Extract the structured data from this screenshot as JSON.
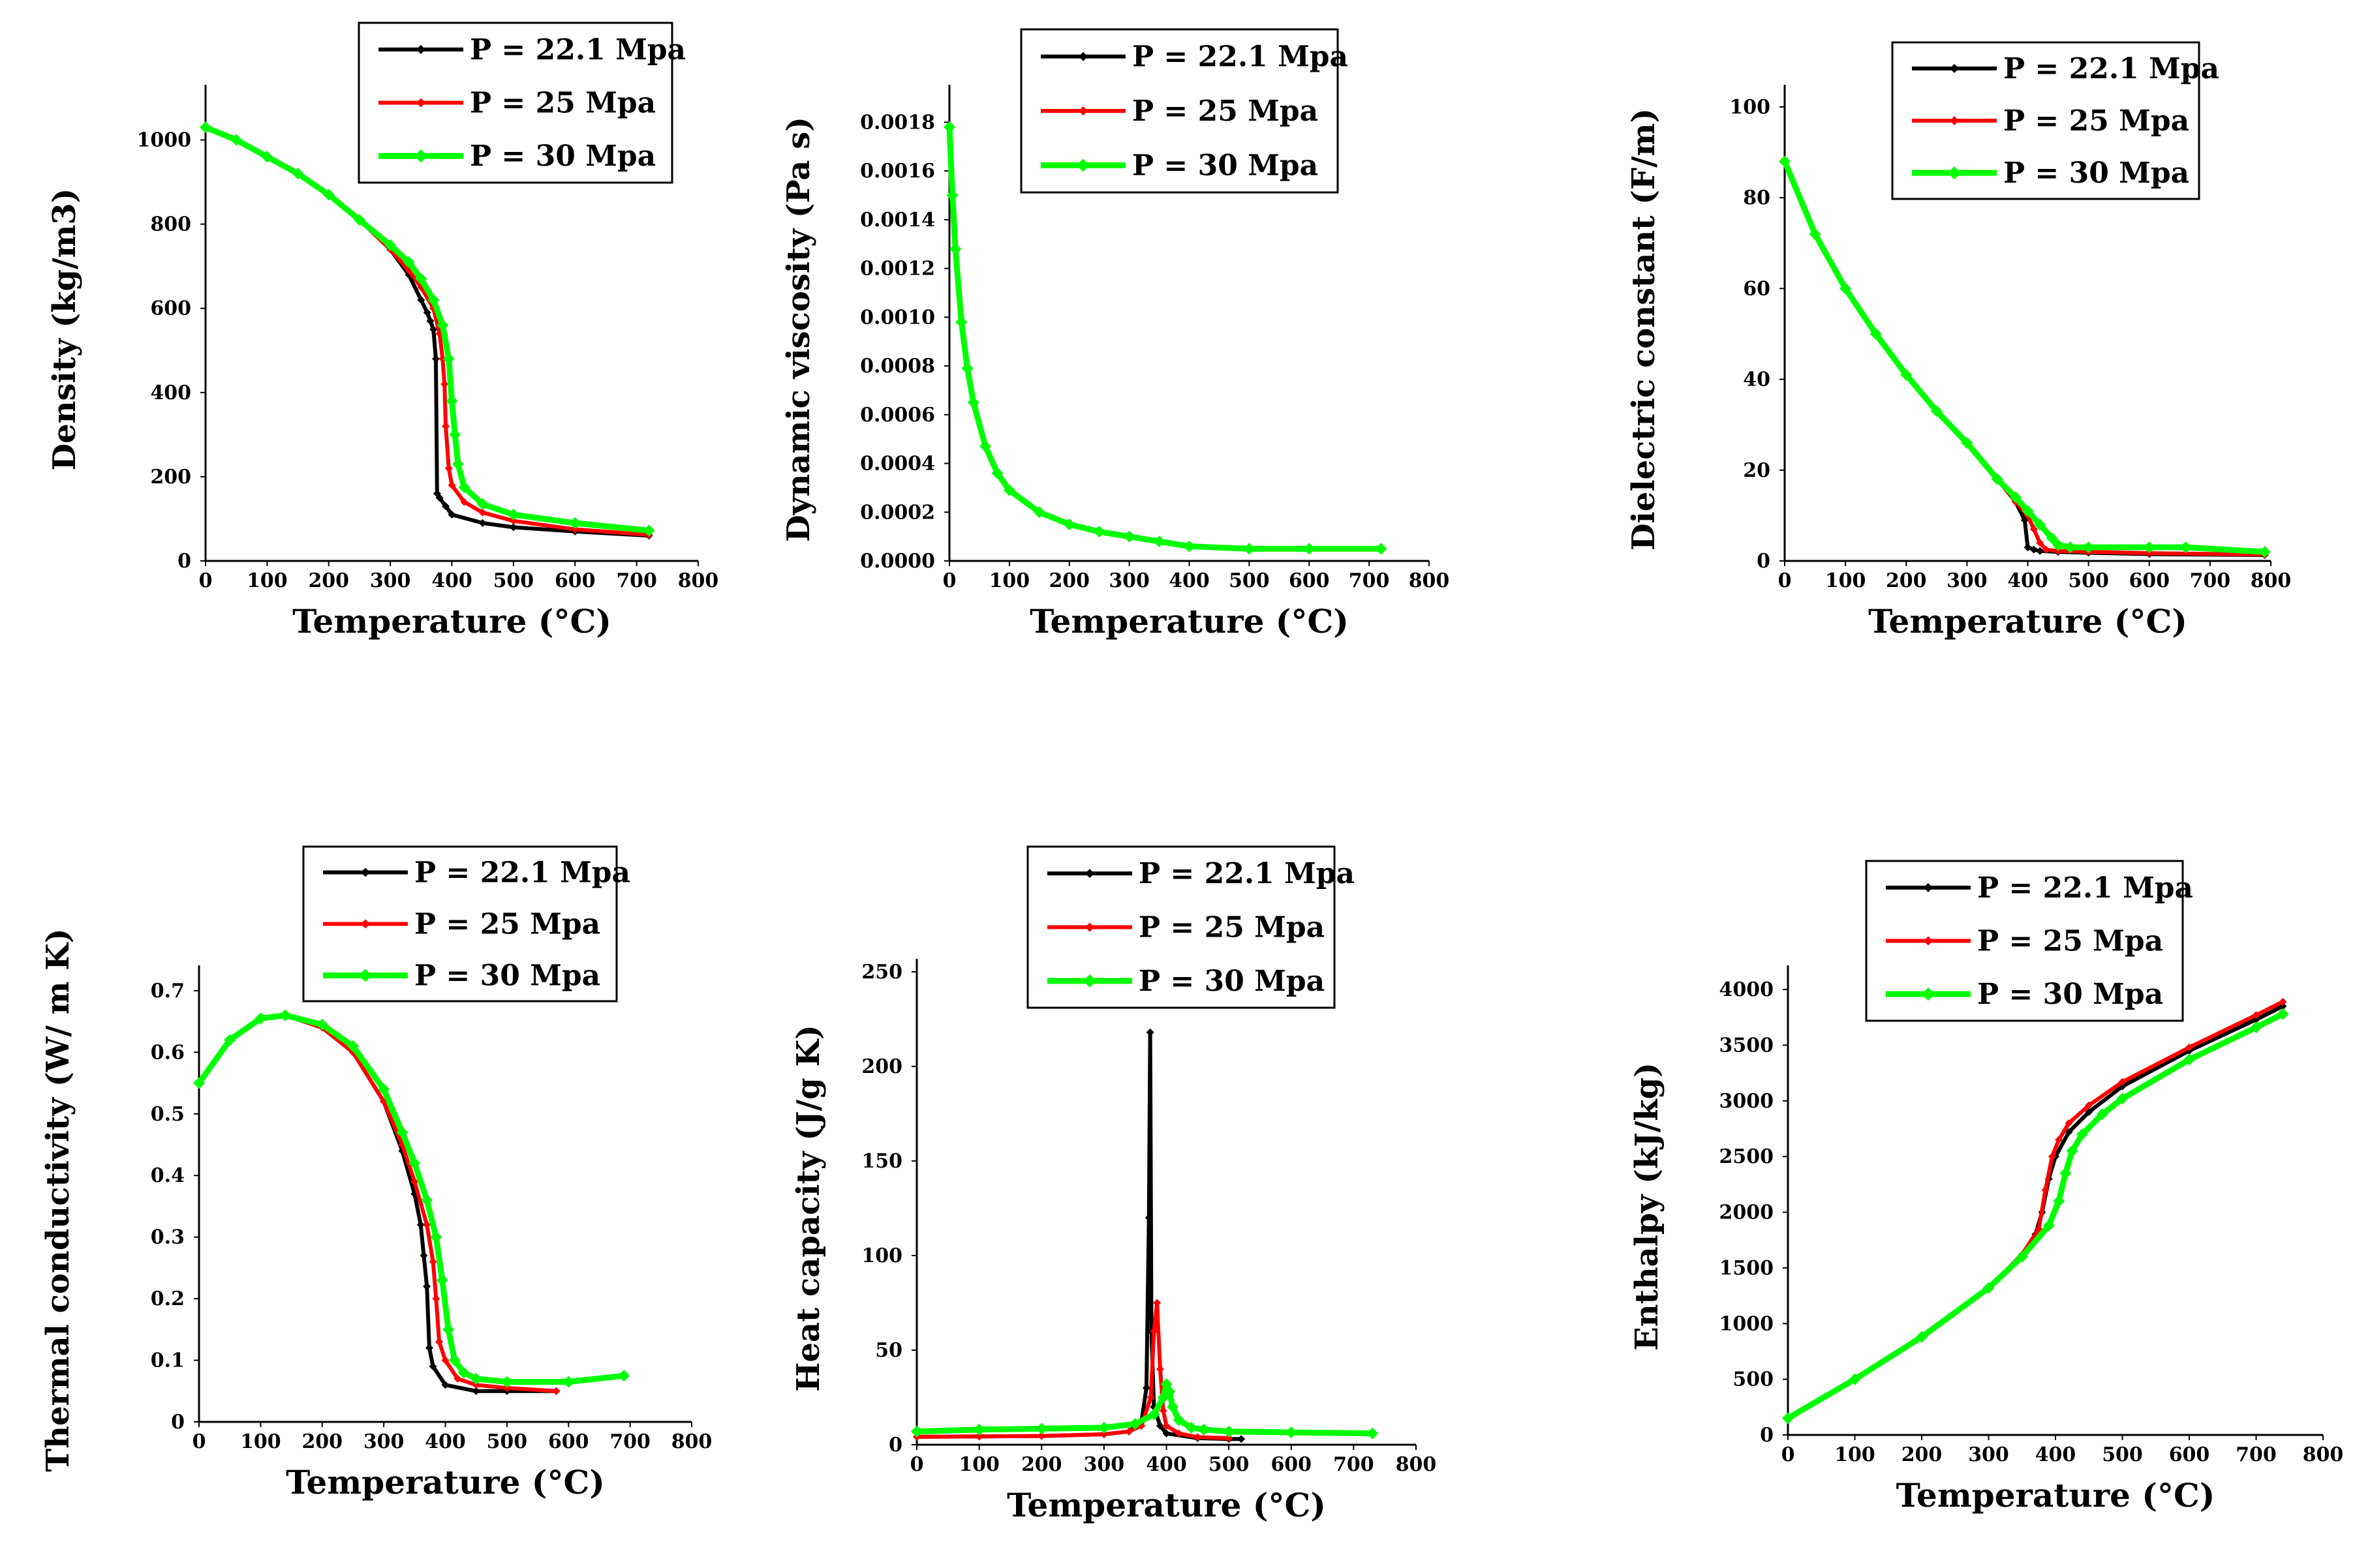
{
  "colors": {
    "p221": "#000000",
    "p25": "#ff0000",
    "p30": "#00ff00"
  },
  "legend": [
    "P = 22.1 Mpa",
    "P = 25 Mpa",
    "P = 30 Mpa"
  ],
  "chart_data": [
    {
      "type": "line",
      "xlabel": "Temperature (°C)",
      "ylabel": "Density (kg/m3)",
      "xlim": [
        0,
        800
      ],
      "ylim": [
        0,
        1100
      ],
      "xticks": [
        "0",
        "100",
        "200",
        "300",
        "400",
        "500",
        "600",
        "700",
        "800"
      ],
      "yticks": [
        "0",
        "200",
        "400",
        "600",
        "800",
        "1000"
      ],
      "legend_position": "top-right",
      "series": [
        {
          "name": "P = 22.1 Mpa",
          "color": "#000000",
          "x": [
            0,
            50,
            100,
            150,
            200,
            250,
            300,
            330,
            350,
            360,
            365,
            370,
            374,
            376,
            380,
            390,
            400,
            450,
            500,
            600,
            720
          ],
          "y": [
            1030,
            1000,
            960,
            920,
            870,
            810,
            740,
            680,
            620,
            590,
            570,
            550,
            480,
            160,
            150,
            130,
            110,
            90,
            80,
            70,
            60
          ]
        },
        {
          "name": "P = 25 Mpa",
          "color": "#ff0000",
          "x": [
            0,
            50,
            100,
            150,
            200,
            250,
            300,
            330,
            350,
            370,
            380,
            385,
            388,
            390,
            395,
            400,
            420,
            450,
            500,
            600,
            720
          ],
          "y": [
            1030,
            1000,
            960,
            920,
            870,
            810,
            740,
            690,
            650,
            600,
            540,
            480,
            420,
            320,
            220,
            180,
            140,
            115,
            95,
            75,
            62
          ]
        },
        {
          "name": "P = 30 Mpa",
          "color": "#00ff00",
          "x": [
            0,
            50,
            100,
            150,
            200,
            250,
            300,
            330,
            350,
            370,
            385,
            395,
            400,
            405,
            410,
            420,
            450,
            500,
            600,
            720
          ],
          "y": [
            1030,
            1000,
            960,
            920,
            870,
            810,
            750,
            710,
            670,
            620,
            560,
            480,
            380,
            300,
            230,
            175,
            135,
            110,
            90,
            72
          ]
        }
      ]
    },
    {
      "type": "line",
      "xlabel": "Temperature (°C)",
      "ylabel": "Dynamic viscosity (Pa s)",
      "xlim": [
        0,
        800
      ],
      "ylim": [
        0,
        0.0019
      ],
      "xticks": [
        "0",
        "100",
        "200",
        "300",
        "400",
        "500",
        "600",
        "700",
        "800"
      ],
      "yticks": [
        "0.0000",
        "0.0002",
        "0.0004",
        "0.0006",
        "0.0008",
        "0.0010",
        "0.0012",
        "0.0014",
        "0.0016",
        "0.0018"
      ],
      "legend_position": "top-right",
      "series": [
        {
          "name": "P = 22.1 Mpa",
          "color": "#000000",
          "x": [
            0,
            5,
            10,
            20,
            30,
            40,
            60,
            80,
            100,
            150,
            200,
            250,
            300,
            350,
            400,
            500,
            600,
            720
          ],
          "y": [
            0.00178,
            0.0015,
            0.00128,
            0.00098,
            0.00079,
            0.00065,
            0.00047,
            0.00036,
            0.00029,
            0.0002,
            0.00015,
            0.00012,
            0.0001,
            8e-05,
            6e-05,
            5e-05,
            5e-05,
            5e-05
          ]
        },
        {
          "name": "P = 25 Mpa",
          "color": "#ff0000",
          "x": [
            0,
            5,
            10,
            20,
            30,
            40,
            60,
            80,
            100,
            150,
            200,
            250,
            300,
            350,
            400,
            500,
            600,
            720
          ],
          "y": [
            0.00178,
            0.0015,
            0.00128,
            0.00098,
            0.00079,
            0.00065,
            0.00047,
            0.00036,
            0.00029,
            0.0002,
            0.00015,
            0.00012,
            0.0001,
            8e-05,
            6e-05,
            5e-05,
            5e-05,
            5e-05
          ]
        },
        {
          "name": "P = 30 Mpa",
          "color": "#00ff00",
          "x": [
            0,
            5,
            10,
            20,
            30,
            40,
            60,
            80,
            100,
            150,
            200,
            250,
            300,
            350,
            400,
            500,
            600,
            720
          ],
          "y": [
            0.00178,
            0.0015,
            0.00128,
            0.00098,
            0.00079,
            0.00065,
            0.00047,
            0.00036,
            0.00029,
            0.0002,
            0.00015,
            0.00012,
            0.0001,
            8e-05,
            6e-05,
            5e-05,
            5e-05,
            5e-05
          ]
        }
      ]
    },
    {
      "type": "line",
      "xlabel": "Temperature (°C)",
      "ylabel": "Dielectric constant (F/m)",
      "xlim": [
        0,
        800
      ],
      "ylim": [
        0,
        102
      ],
      "xticks": [
        "0",
        "100",
        "200",
        "300",
        "400",
        "500",
        "600",
        "700",
        "800"
      ],
      "yticks": [
        "0",
        "20",
        "40",
        "60",
        "80",
        "100"
      ],
      "legend_position": "top-right",
      "series": [
        {
          "name": "P = 22.1 Mpa",
          "color": "#000000",
          "x": [
            0,
            50,
            100,
            150,
            200,
            250,
            300,
            350,
            380,
            395,
            400,
            410,
            420,
            450,
            500,
            600,
            790
          ],
          "y": [
            88,
            72,
            60,
            50,
            41,
            33,
            26,
            18,
            13,
            9,
            3,
            2.5,
            2.2,
            2,
            1.8,
            1.5,
            1.3
          ]
        },
        {
          "name": "P = 25 Mpa",
          "color": "#ff0000",
          "x": [
            0,
            50,
            100,
            150,
            200,
            250,
            300,
            350,
            380,
            400,
            410,
            420,
            430,
            450,
            500,
            600,
            790
          ],
          "y": [
            88,
            72,
            60,
            50,
            41,
            33,
            26,
            18,
            13,
            10,
            7,
            4,
            2.5,
            2.2,
            2,
            1.7,
            1.4
          ]
        },
        {
          "name": "P = 30 Mpa",
          "color": "#00ff00",
          "x": [
            0,
            50,
            100,
            150,
            200,
            250,
            300,
            350,
            380,
            400,
            420,
            440,
            450,
            470,
            500,
            600,
            660,
            790
          ],
          "y": [
            88,
            72,
            60,
            50,
            41,
            33,
            26,
            18,
            14,
            11,
            8,
            5,
            3.5,
            3,
            3,
            3,
            3,
            2
          ]
        }
      ]
    },
    {
      "type": "line",
      "xlabel": "Temperature (°C)",
      "ylabel": "Thermal conductivity (W/ m K)",
      "xlim": [
        0,
        800
      ],
      "ylim": [
        0,
        0.72
      ],
      "xticks": [
        "0",
        "100",
        "200",
        "300",
        "400",
        "500",
        "600",
        "700",
        "800"
      ],
      "yticks": [
        "0",
        "0.1",
        "0.2",
        "0.3",
        "0.4",
        "0.5",
        "0.6",
        "0.7"
      ],
      "legend_position": "top-right",
      "series": [
        {
          "name": "P = 22.1 Mpa",
          "color": "#000000",
          "x": [
            0,
            50,
            100,
            140,
            200,
            250,
            300,
            330,
            350,
            360,
            365,
            370,
            374,
            380,
            400,
            450,
            500,
            580
          ],
          "y": [
            0.55,
            0.62,
            0.655,
            0.66,
            0.64,
            0.6,
            0.52,
            0.44,
            0.37,
            0.32,
            0.27,
            0.22,
            0.12,
            0.09,
            0.06,
            0.05,
            0.05,
            0.05
          ]
        },
        {
          "name": "P = 25 Mpa",
          "color": "#ff0000",
          "x": [
            0,
            50,
            100,
            140,
            200,
            250,
            300,
            330,
            350,
            370,
            380,
            385,
            390,
            400,
            420,
            450,
            500,
            580
          ],
          "y": [
            0.55,
            0.62,
            0.655,
            0.66,
            0.64,
            0.6,
            0.52,
            0.45,
            0.39,
            0.32,
            0.26,
            0.2,
            0.13,
            0.1,
            0.07,
            0.06,
            0.055,
            0.05
          ]
        },
        {
          "name": "P = 30 Mpa",
          "color": "#00ff00",
          "x": [
            0,
            50,
            100,
            140,
            200,
            250,
            300,
            330,
            350,
            370,
            385,
            395,
            405,
            415,
            430,
            450,
            500,
            600,
            690
          ],
          "y": [
            0.55,
            0.62,
            0.655,
            0.66,
            0.645,
            0.61,
            0.54,
            0.47,
            0.42,
            0.36,
            0.3,
            0.23,
            0.15,
            0.1,
            0.08,
            0.07,
            0.065,
            0.065,
            0.075
          ]
        }
      ]
    },
    {
      "type": "line",
      "xlabel": "Temperature (°C)",
      "ylabel": "Heat capacity (J/g K)",
      "xlim": [
        0,
        800
      ],
      "ylim": [
        0,
        250
      ],
      "xticks": [
        "0",
        "100",
        "200",
        "300",
        "400",
        "500",
        "600",
        "700",
        "800"
      ],
      "yticks": [
        "0",
        "50",
        "100",
        "150",
        "200",
        "250"
      ],
      "legend_position": "top-right",
      "series": [
        {
          "name": "P = 22.1 Mpa",
          "color": "#000000",
          "x": [
            0,
            100,
            200,
            300,
            340,
            360,
            368,
            372,
            374,
            376,
            380,
            390,
            400,
            450,
            500,
            520
          ],
          "y": [
            4.2,
            4.4,
            4.6,
            5.5,
            7,
            12,
            30,
            120,
            218,
            60,
            20,
            10,
            6,
            3.5,
            3,
            3
          ]
        },
        {
          "name": "P = 25 Mpa",
          "color": "#ff0000",
          "x": [
            0,
            100,
            200,
            300,
            340,
            360,
            375,
            380,
            385,
            390,
            395,
            400,
            420,
            450,
            500
          ],
          "y": [
            4.2,
            4.4,
            4.6,
            5.5,
            7,
            10,
            25,
            60,
            75,
            40,
            18,
            10,
            6,
            4,
            3.5
          ]
        },
        {
          "name": "P = 30 Mpa",
          "color": "#00ff00",
          "x": [
            0,
            100,
            200,
            300,
            350,
            380,
            395,
            400,
            405,
            410,
            420,
            440,
            460,
            500,
            600,
            730
          ],
          "y": [
            7,
            8,
            8.5,
            9,
            11,
            16,
            25,
            32,
            28,
            20,
            13,
            9,
            8,
            7,
            6.5,
            6
          ]
        }
      ]
    },
    {
      "type": "line",
      "xlabel": "Temperature (°C)",
      "ylabel": "Enthalpy (kJ/kg)",
      "xlim": [
        0,
        800
      ],
      "ylim": [
        0,
        4100
      ],
      "xticks": [
        "0",
        "100",
        "200",
        "300",
        "400",
        "500",
        "600",
        "700",
        "800"
      ],
      "yticks": [
        "0",
        "500",
        "1000",
        "1500",
        "2000",
        "2500",
        "3000",
        "3500",
        "4000"
      ],
      "legend_position": "top-right",
      "series": [
        {
          "name": "P = 22.1 Mpa",
          "color": "#000000",
          "x": [
            0,
            100,
            200,
            300,
            350,
            370,
            380,
            390,
            400,
            420,
            450,
            500,
            600,
            700,
            740
          ],
          "y": [
            150,
            500,
            880,
            1320,
            1620,
            1800,
            2000,
            2300,
            2500,
            2720,
            2900,
            3130,
            3450,
            3730,
            3850
          ]
        },
        {
          "name": "P = 25 Mpa",
          "color": "#ff0000",
          "x": [
            0,
            100,
            200,
            300,
            350,
            375,
            385,
            395,
            405,
            420,
            450,
            500,
            600,
            700,
            740
          ],
          "y": [
            150,
            500,
            880,
            1320,
            1620,
            1850,
            2200,
            2500,
            2650,
            2800,
            2960,
            3170,
            3480,
            3770,
            3890
          ]
        },
        {
          "name": "P = 30 Mpa",
          "color": "#00ff00",
          "x": [
            0,
            100,
            200,
            300,
            350,
            390,
            405,
            415,
            425,
            440,
            470,
            500,
            600,
            700,
            740
          ],
          "y": [
            150,
            500,
            880,
            1320,
            1600,
            1880,
            2100,
            2350,
            2550,
            2700,
            2880,
            3020,
            3370,
            3660,
            3780
          ]
        }
      ]
    }
  ]
}
